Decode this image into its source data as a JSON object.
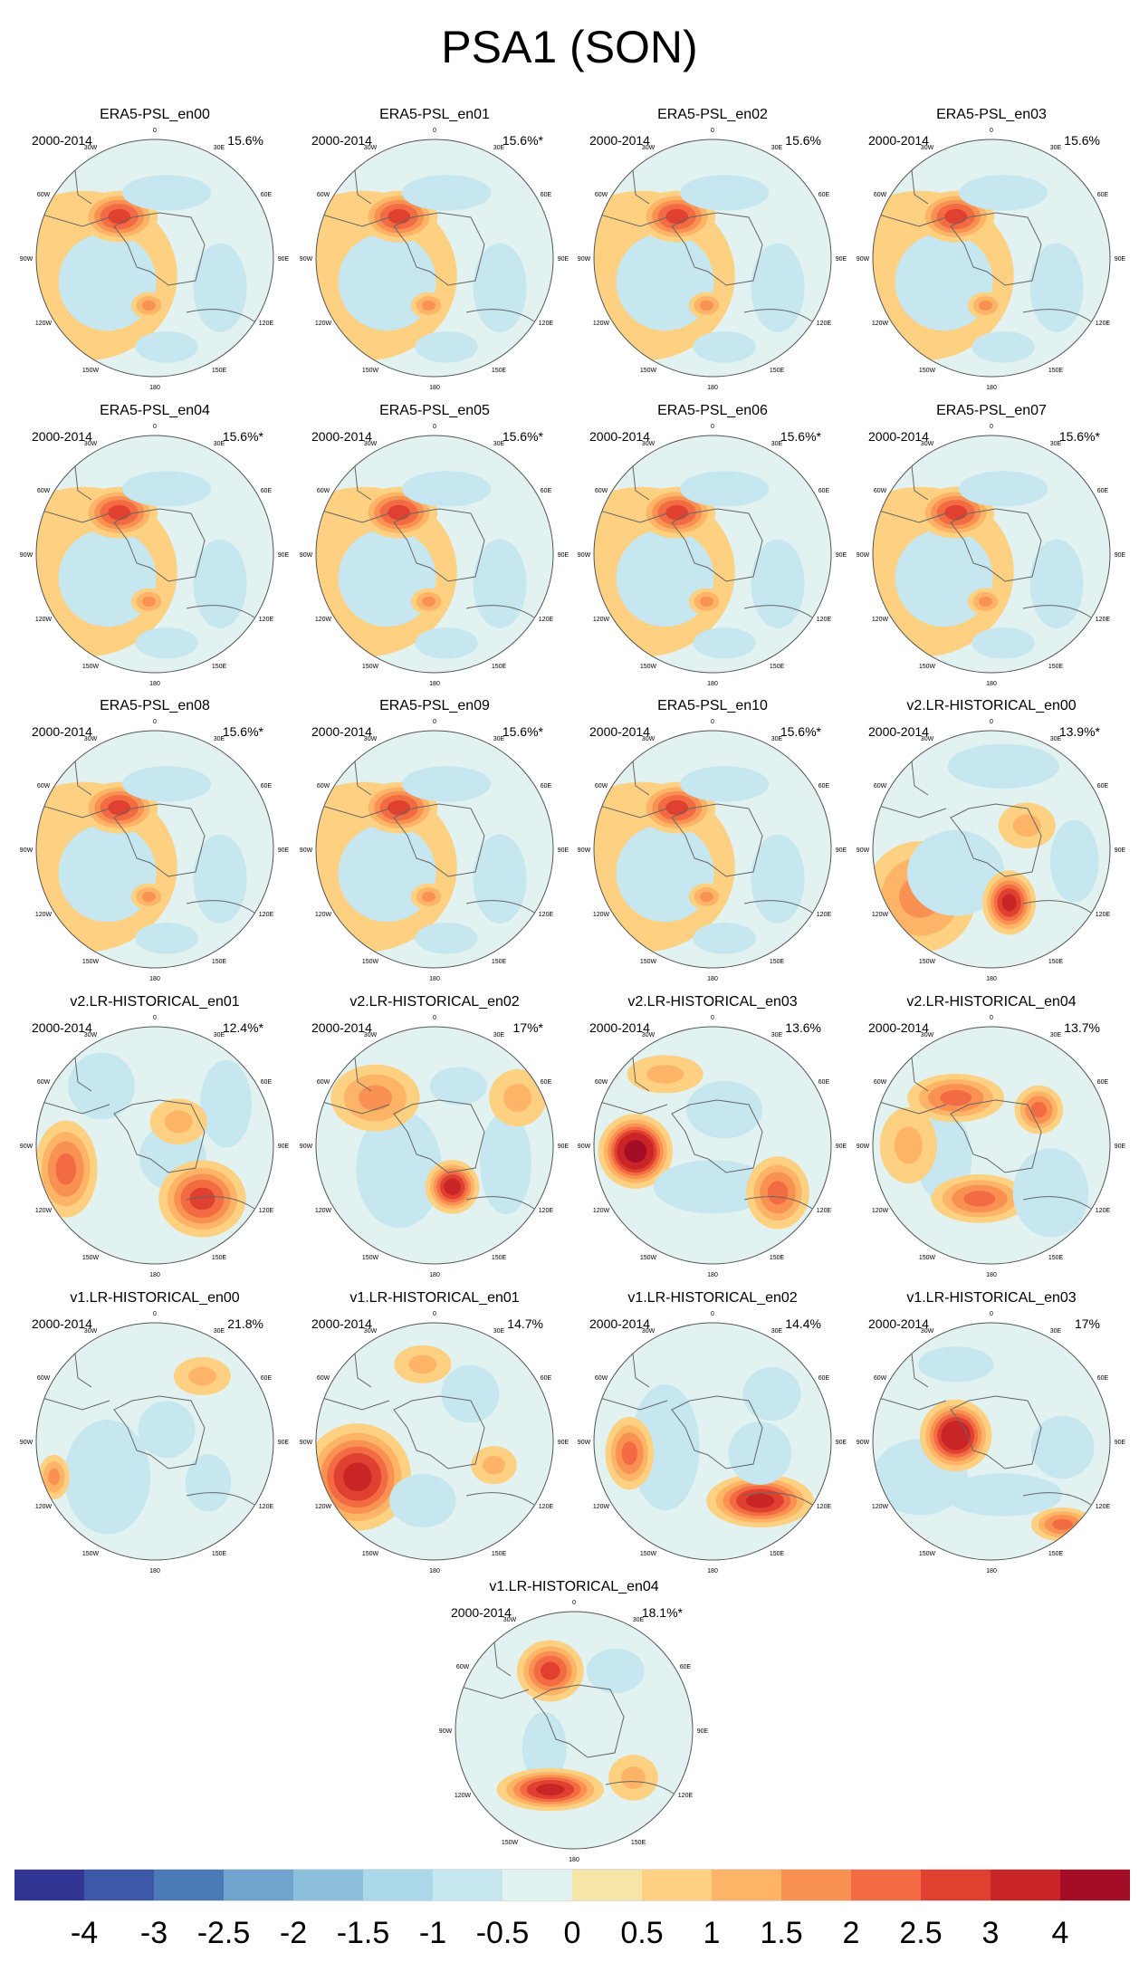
{
  "chart_data": {
    "type": "heatmap",
    "title": "PSA1 (SON)",
    "subplot_kind": "south-polar-stereographic filled contour maps",
    "longitude_labels": [
      "0",
      "30E",
      "60E",
      "90E",
      "120E",
      "150E",
      "180",
      "150W",
      "120W",
      "90W",
      "60W",
      "30W"
    ],
    "panels": [
      {
        "title": "ERA5-PSL_en00",
        "period": "2000-2014",
        "pct": "15.6%"
      },
      {
        "title": "ERA5-PSL_en01",
        "period": "2000-2014",
        "pct": "15.6%*"
      },
      {
        "title": "ERA5-PSL_en02",
        "period": "2000-2014",
        "pct": "15.6%"
      },
      {
        "title": "ERA5-PSL_en03",
        "period": "2000-2014",
        "pct": "15.6%"
      },
      {
        "title": "ERA5-PSL_en04",
        "period": "2000-2014",
        "pct": "15.6%*"
      },
      {
        "title": "ERA5-PSL_en05",
        "period": "2000-2014",
        "pct": "15.6%*"
      },
      {
        "title": "ERA5-PSL_en06",
        "period": "2000-2014",
        "pct": "15.6%*"
      },
      {
        "title": "ERA5-PSL_en07",
        "period": "2000-2014",
        "pct": "15.6%*"
      },
      {
        "title": "ERA5-PSL_en08",
        "period": "2000-2014",
        "pct": "15.6%*"
      },
      {
        "title": "ERA5-PSL_en09",
        "period": "2000-2014",
        "pct": "15.6%*"
      },
      {
        "title": "ERA5-PSL_en10",
        "period": "2000-2014",
        "pct": "15.6%*"
      },
      {
        "title": "v2.LR-HISTORICAL_en00",
        "period": "2000-2014",
        "pct": "13.9%*"
      },
      {
        "title": "v2.LR-HISTORICAL_en01",
        "period": "2000-2014",
        "pct": "12.4%*"
      },
      {
        "title": "v2.LR-HISTORICAL_en02",
        "period": "2000-2014",
        "pct": "17%*"
      },
      {
        "title": "v2.LR-HISTORICAL_en03",
        "period": "2000-2014",
        "pct": "13.6%"
      },
      {
        "title": "v2.LR-HISTORICAL_en04",
        "period": "2000-2014",
        "pct": "13.7%"
      },
      {
        "title": "v1.LR-HISTORICAL_en00",
        "period": "2000-2014",
        "pct": "21.8%"
      },
      {
        "title": "v1.LR-HISTORICAL_en01",
        "period": "2000-2014",
        "pct": "14.7%"
      },
      {
        "title": "v1.LR-HISTORICAL_en02",
        "period": "2000-2014",
        "pct": "14.4%"
      },
      {
        "title": "v1.LR-HISTORICAL_en03",
        "period": "2000-2014",
        "pct": "17%"
      },
      {
        "title": "v1.LR-HISTORICAL_en04",
        "period": "2000-2014",
        "pct": "18.1%*"
      }
    ],
    "colorbar": {
      "labels": [
        "-4",
        "-3",
        "-2.5",
        "-2",
        "-1.5",
        "-1",
        "-0.5",
        "0",
        "0.5",
        "1",
        "1.5",
        "2",
        "2.5",
        "3",
        "4"
      ],
      "levels": [
        -4,
        -3,
        -2.5,
        -2,
        -1.5,
        -1,
        -0.5,
        0,
        0.5,
        1,
        1.5,
        2,
        2.5,
        3,
        4
      ],
      "colors": [
        "#313695",
        "#3d58a7",
        "#4a7bb7",
        "#6fa5cd",
        "#8bbfdb",
        "#abd9e9",
        "#c6e6f0",
        "#e1f2f0",
        "#f7e5a8",
        "#fdd181",
        "#fdb466",
        "#f99153",
        "#f26b42",
        "#e0402f",
        "#c92527",
        "#a50d26"
      ]
    }
  }
}
